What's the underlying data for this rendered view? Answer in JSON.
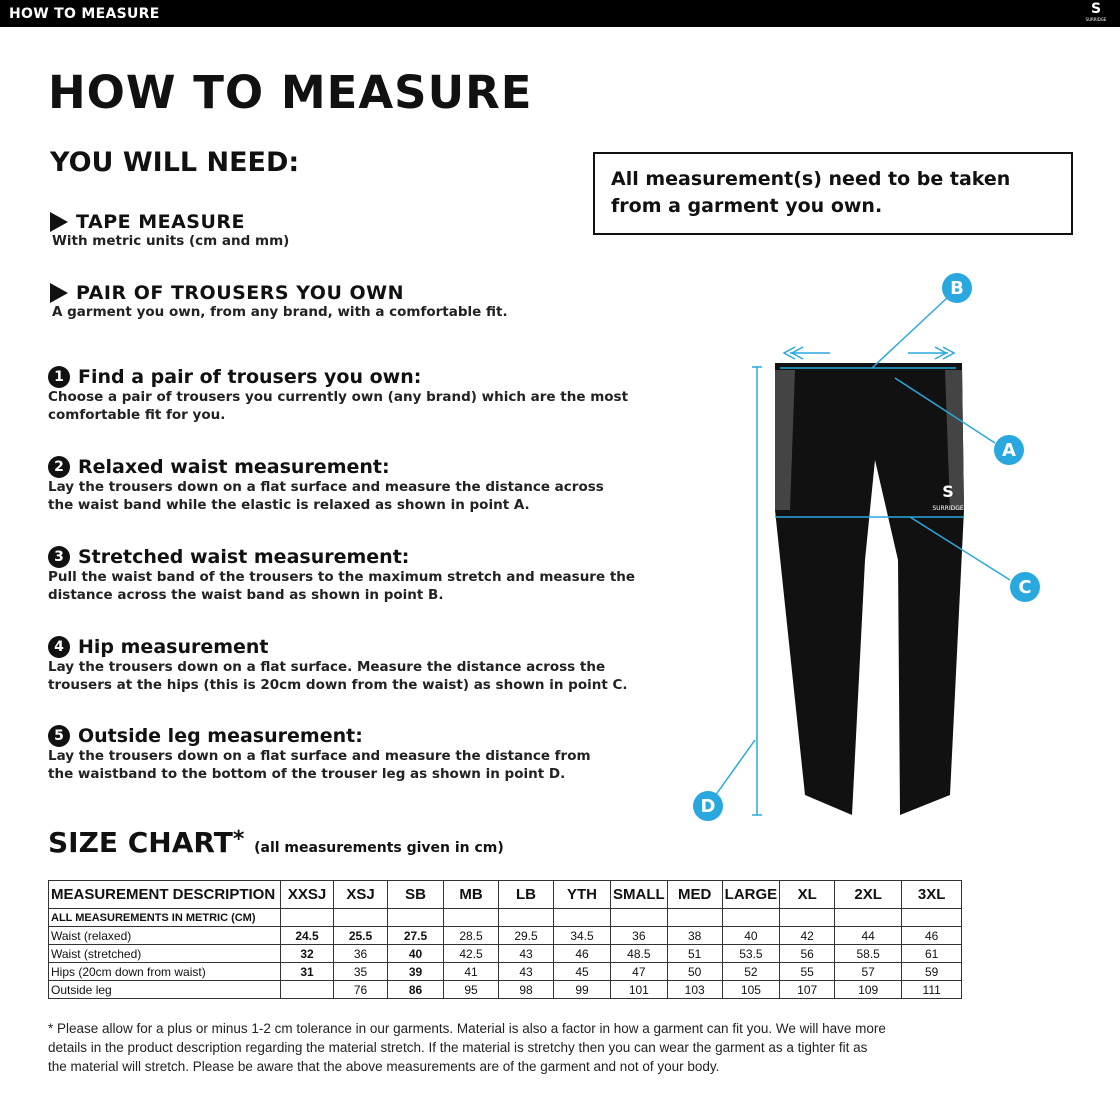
{
  "header": {
    "title": "HOW TO MEASURE",
    "logo_text": "SURRIDGE"
  },
  "page_title": "HOW TO MEASURE",
  "you_will_need": "YOU WILL NEED:",
  "needs": [
    {
      "title": "TAPE MEASURE",
      "sub": "With metric units (cm and mm)"
    },
    {
      "title": "PAIR OF TROUSERS YOU OWN",
      "sub": "A garment you own, from any brand, with a comfortable fit."
    }
  ],
  "note": "All measurement(s) need to be taken from a garment you own.",
  "steps": [
    {
      "num": "1",
      "title": "Find a pair of trousers you own:",
      "desc": "Choose a pair of trousers you currently own (any brand) which are the most comfortable fit for you."
    },
    {
      "num": "2",
      "title": "Relaxed waist measurement:",
      "desc": "Lay the trousers down on a flat surface and measure the distance across the waist band while the elastic is relaxed as shown in point A."
    },
    {
      "num": "3",
      "title": "Stretched waist measurement:",
      "desc": "Pull the waist band of the trousers to the maximum stretch and measure the distance across the waist band as shown in point B."
    },
    {
      "num": "4",
      "title": "Hip measurement",
      "desc": "Lay the trousers down on a flat surface. Measure the distance across the trousers at the hips (this is 20cm down from the waist)  as shown in point C."
    },
    {
      "num": "5",
      "title": "Outside leg measurement:",
      "desc": "Lay the trousers down on a flat surface and measure the distance from the waistband to the bottom of the trouser  leg as shown in point D."
    }
  ],
  "diagram": {
    "labels": [
      "A",
      "B",
      "C",
      "D"
    ],
    "accent": "#29a8e0",
    "garment_logo": "SURRIDGE"
  },
  "size_chart": {
    "title": "SIZE CHART",
    "asterisk": "*",
    "subtitle": "(all measurements given in cm)",
    "columns": [
      "MEASUREMENT DESCRIPTION",
      "XXSJ",
      "XSJ",
      "SB",
      "MB",
      "LB",
      "YTH",
      "SMALL",
      "MED",
      "LARGE",
      "XL",
      "2XL",
      "3XL"
    ],
    "rows": [
      [
        "ALL MEASUREMENTS IN METRIC (CM)",
        "",
        "",
        "",
        "",
        "",
        "",
        "",
        "",
        "",
        "",
        "",
        ""
      ],
      [
        "Waist (relaxed)",
        "24.5",
        "25.5",
        "27.5",
        "28.5",
        "29.5",
        "34.5",
        "36",
        "38",
        "40",
        "42",
        "44",
        "46"
      ],
      [
        "Waist (stretched)",
        "32",
        "36",
        "40",
        "42.5",
        "43",
        "46",
        "48.5",
        "51",
        "53.5",
        "56",
        "58.5",
        "61"
      ],
      [
        "Hips (20cm down from waist)",
        "31",
        "35",
        "39",
        "41",
        "43",
        "45",
        "47",
        "50",
        "52",
        "55",
        "57",
        "59"
      ],
      [
        "Outside leg",
        "",
        "76",
        "86",
        "95",
        "98",
        "99",
        "101",
        "103",
        "105",
        "107",
        "109",
        "111"
      ]
    ]
  },
  "footnote": "* Please allow for a plus or minus 1-2 cm tolerance in our garments. Material is also a factor in how a garment can fit you. We will have more details in the product description regarding the material stretch.  If the material is stretchy then you can wear the garment as a tighter fit as the material will stretch.  Please be aware that the above measurements are of the garment and not of your body."
}
